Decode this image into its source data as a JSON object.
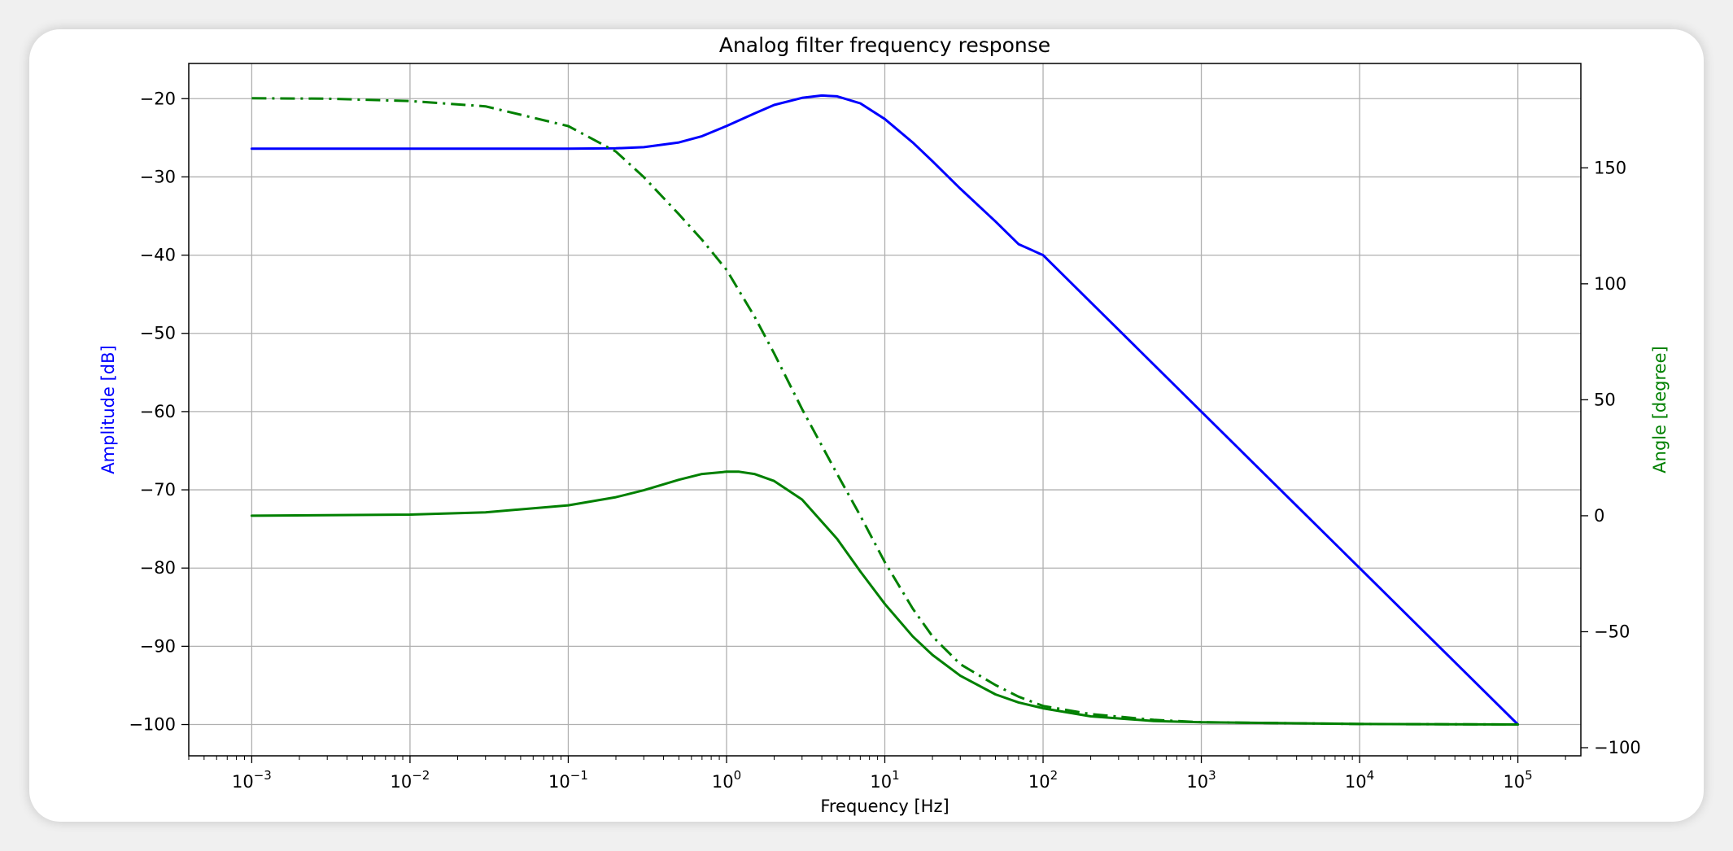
{
  "chart_data": {
    "type": "line",
    "title": "Analog filter frequency response",
    "xlabel": "Frequency [Hz]",
    "ylabel": "Amplitude [dB]",
    "y2label": "Angle [degree]",
    "xscale": "log",
    "xlim": [
      0.0004,
      250000
    ],
    "ylim": [
      -104,
      -15.5
    ],
    "y2lim": [
      -103.5,
      195
    ],
    "grid": true,
    "x_ticks": [
      {
        "value": 0.001,
        "base": "10",
        "exp": "−3"
      },
      {
        "value": 0.01,
        "base": "10",
        "exp": "−2"
      },
      {
        "value": 0.1,
        "base": "10",
        "exp": "−1"
      },
      {
        "value": 1,
        "base": "10",
        "exp": "0"
      },
      {
        "value": 10,
        "base": "10",
        "exp": "1"
      },
      {
        "value": 100,
        "base": "10",
        "exp": "2"
      },
      {
        "value": 1000,
        "base": "10",
        "exp": "3"
      },
      {
        "value": 10000,
        "base": "10",
        "exp": "4"
      },
      {
        "value": 100000,
        "base": "10",
        "exp": "5"
      }
    ],
    "y_ticks": [
      {
        "value": -20,
        "label": "−20"
      },
      {
        "value": -30,
        "label": "−30"
      },
      {
        "value": -40,
        "label": "−40"
      },
      {
        "value": -50,
        "label": "−50"
      },
      {
        "value": -60,
        "label": "−60"
      },
      {
        "value": -70,
        "label": "−70"
      },
      {
        "value": -80,
        "label": "−80"
      },
      {
        "value": -90,
        "label": "−90"
      },
      {
        "value": -100,
        "label": "−100"
      }
    ],
    "y2_ticks": [
      {
        "value": 150,
        "label": "150"
      },
      {
        "value": 100,
        "label": "100"
      },
      {
        "value": 50,
        "label": "50"
      },
      {
        "value": 0,
        "label": "0"
      },
      {
        "value": -50,
        "label": "−50"
      },
      {
        "value": -100,
        "label": "−100"
      }
    ],
    "series": [
      {
        "axis": "left",
        "color": "#0000ff",
        "style": "solid",
        "points": [
          [
            0.001,
            -26.4
          ],
          [
            0.01,
            -26.4
          ],
          [
            0.1,
            -26.4
          ],
          [
            0.2,
            -26.35
          ],
          [
            0.3,
            -26.2
          ],
          [
            0.5,
            -25.6
          ],
          [
            0.7,
            -24.8
          ],
          [
            1,
            -23.5
          ],
          [
            1.5,
            -21.9
          ],
          [
            2,
            -20.8
          ],
          [
            3,
            -19.9
          ],
          [
            4,
            -19.6
          ],
          [
            5,
            -19.7
          ],
          [
            7,
            -20.6
          ],
          [
            10,
            -22.6
          ],
          [
            15,
            -25.6
          ],
          [
            20,
            -28.0
          ],
          [
            30,
            -31.5
          ],
          [
            50,
            -35.7
          ],
          [
            70,
            -38.6
          ],
          [
            100,
            -40
          ],
          [
            1000,
            -60
          ],
          [
            10000,
            -80
          ],
          [
            100000,
            -100
          ]
        ]
      },
      {
        "axis": "right",
        "color": "#008000",
        "style": "dashdot",
        "points": [
          [
            0.001,
            180
          ],
          [
            0.003,
            179.8
          ],
          [
            0.01,
            178.8
          ],
          [
            0.03,
            176.5
          ],
          [
            0.1,
            168
          ],
          [
            0.2,
            157
          ],
          [
            0.3,
            146
          ],
          [
            0.5,
            130
          ],
          [
            0.7,
            119
          ],
          [
            1,
            106
          ],
          [
            1.5,
            86
          ],
          [
            2,
            70
          ],
          [
            3,
            46
          ],
          [
            5,
            18
          ],
          [
            7,
            0
          ],
          [
            10,
            -20
          ],
          [
            15,
            -40
          ],
          [
            20,
            -52
          ],
          [
            30,
            -64
          ],
          [
            50,
            -73
          ],
          [
            70,
            -78
          ],
          [
            100,
            -82
          ],
          [
            200,
            -85.5
          ],
          [
            500,
            -88
          ],
          [
            1000,
            -89
          ],
          [
            10000,
            -89.8
          ],
          [
            100000,
            -90
          ]
        ]
      },
      {
        "axis": "right",
        "color": "#008000",
        "style": "solid",
        "points": [
          [
            0.001,
            0
          ],
          [
            0.01,
            0.5
          ],
          [
            0.03,
            1.5
          ],
          [
            0.1,
            4.5
          ],
          [
            0.2,
            8
          ],
          [
            0.3,
            11
          ],
          [
            0.5,
            15.5
          ],
          [
            0.7,
            18
          ],
          [
            1,
            19
          ],
          [
            1.2,
            19
          ],
          [
            1.5,
            18
          ],
          [
            2,
            15
          ],
          [
            3,
            7
          ],
          [
            5,
            -10
          ],
          [
            7,
            -24
          ],
          [
            10,
            -38
          ],
          [
            15,
            -52
          ],
          [
            20,
            -60
          ],
          [
            30,
            -69
          ],
          [
            50,
            -77
          ],
          [
            70,
            -80.5
          ],
          [
            100,
            -83
          ],
          [
            200,
            -86.5
          ],
          [
            500,
            -88.5
          ],
          [
            1000,
            -89
          ],
          [
            10000,
            -89.8
          ],
          [
            100000,
            -90
          ]
        ]
      }
    ]
  }
}
